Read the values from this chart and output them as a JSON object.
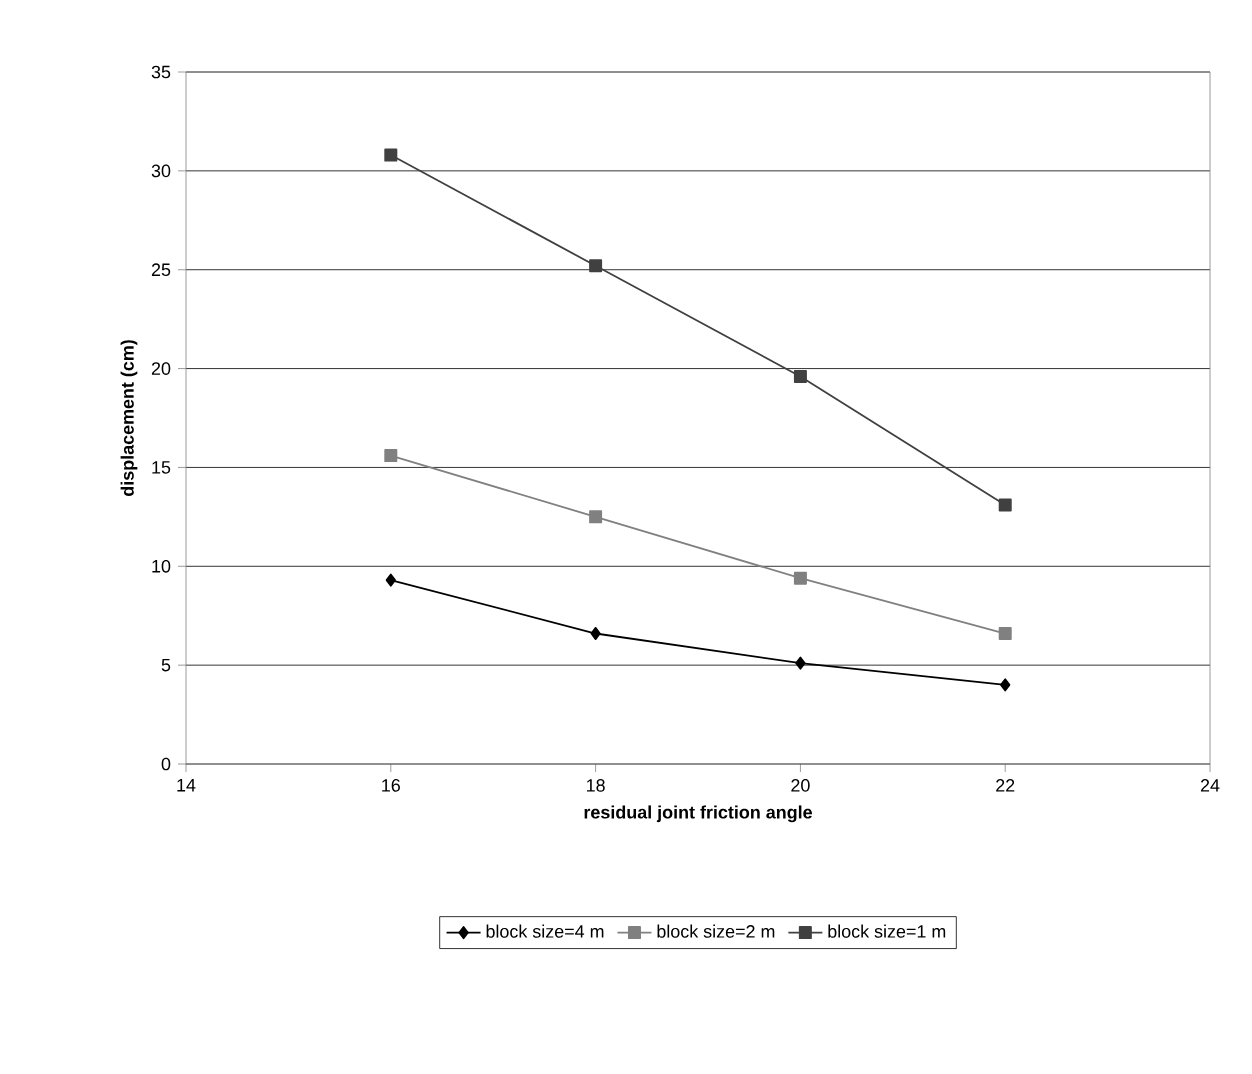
{
  "chart_data": {
    "type": "line",
    "xlabel": "residual joint friction angle",
    "ylabel": "displacement (cm)",
    "x": [
      16,
      18,
      20,
      22
    ],
    "series": [
      {
        "name": "block size=4 m",
        "color": "#000000",
        "marker": "diamond",
        "values": [
          9.3,
          6.6,
          5.1,
          4.0
        ]
      },
      {
        "name": "block size=2 m",
        "color": "#808080",
        "marker": "square",
        "values": [
          15.6,
          12.5,
          9.4,
          6.6
        ]
      },
      {
        "name": "block size=1 m",
        "color": "#404040",
        "marker": "square",
        "values": [
          30.8,
          25.2,
          19.6,
          13.1
        ]
      }
    ],
    "xlim": [
      14,
      24
    ],
    "xticks": [
      14,
      16,
      18,
      20,
      22,
      24
    ],
    "ylim": [
      0,
      35
    ],
    "yticks": [
      0,
      5,
      10,
      15,
      20,
      25,
      30,
      35
    ],
    "grid": "y",
    "legend": "bottom",
    "line_style": "solid"
  }
}
